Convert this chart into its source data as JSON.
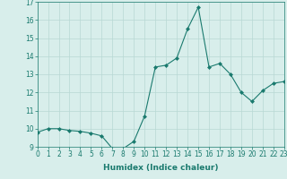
{
  "x": [
    0,
    1,
    2,
    3,
    4,
    5,
    6,
    7,
    8,
    9,
    10,
    11,
    12,
    13,
    14,
    15,
    16,
    17,
    18,
    19,
    20,
    21,
    22,
    23
  ],
  "y": [
    9.8,
    10.0,
    10.0,
    9.9,
    9.85,
    9.75,
    9.6,
    8.9,
    8.9,
    9.3,
    10.7,
    13.4,
    13.5,
    13.9,
    15.5,
    16.7,
    13.4,
    13.6,
    13.0,
    12.0,
    11.5,
    12.1,
    12.5,
    12.6
  ],
  "ylim": [
    9,
    17
  ],
  "xlim": [
    0,
    23
  ],
  "yticks": [
    9,
    10,
    11,
    12,
    13,
    14,
    15,
    16,
    17
  ],
  "xticks": [
    0,
    1,
    2,
    3,
    4,
    5,
    6,
    7,
    8,
    9,
    10,
    11,
    12,
    13,
    14,
    15,
    16,
    17,
    18,
    19,
    20,
    21,
    22,
    23
  ],
  "xlabel": "Humidex (Indice chaleur)",
  "line_color": "#1a7a6e",
  "marker": "D",
  "marker_size": 2.0,
  "bg_color": "#d8eeeb",
  "grid_color": "#b8d8d4",
  "tick_label_fontsize": 5.5,
  "xlabel_fontsize": 6.5
}
